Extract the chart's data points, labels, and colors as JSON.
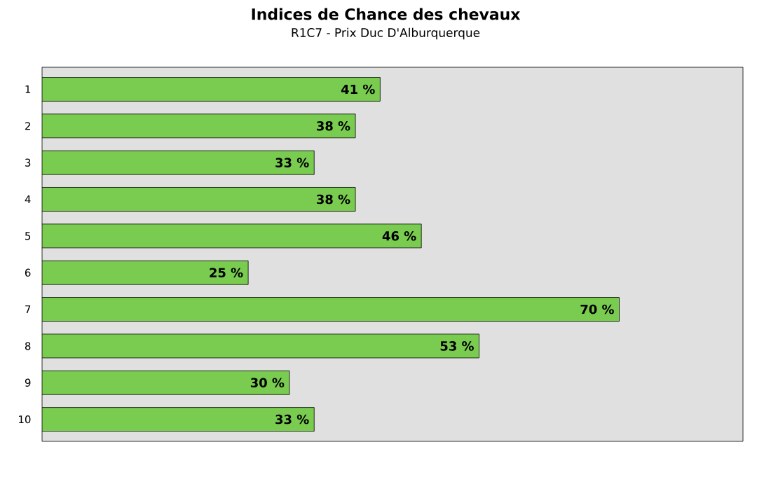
{
  "chart_data": {
    "type": "bar",
    "orientation": "horizontal",
    "title": "Indices de Chance des chevaux",
    "subtitle": "R1C7 - Prix Duc D'Alburquerque",
    "categories": [
      "1",
      "2",
      "3",
      "4",
      "5",
      "6",
      "7",
      "8",
      "9",
      "10"
    ],
    "values": [
      41,
      38,
      33,
      38,
      46,
      25,
      70,
      53,
      30,
      33
    ],
    "value_labels": [
      "41 %",
      "38 %",
      "33 %",
      "38 %",
      "46 %",
      "25 %",
      "70 %",
      "53 %",
      "30 %",
      "33 %"
    ],
    "color": "#79cc4f",
    "xlim": [
      0,
      85
    ],
    "tick_labels": "y"
  }
}
